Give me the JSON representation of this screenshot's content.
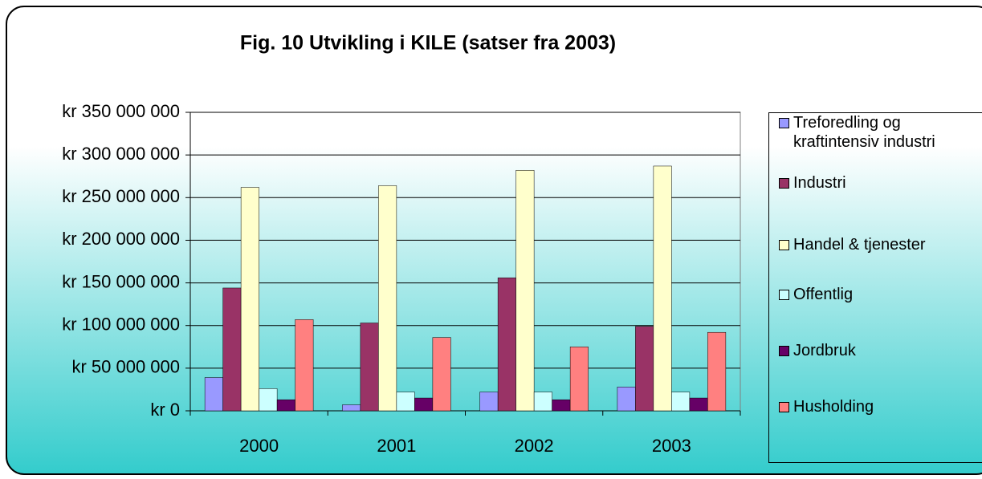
{
  "chart_data": {
    "type": "bar",
    "title": "Fig. 10  Utvikling i KILE (satser fra 2003)",
    "categories": [
      "2000",
      "2001",
      "2002",
      "2003"
    ],
    "series": [
      {
        "name": "Treforedling og kraftintensiv industri",
        "color": "#9999ff",
        "values": [
          39000000,
          7000000,
          22000000,
          28000000
        ]
      },
      {
        "name": "Industri",
        "color": "#993366",
        "values": [
          144000000,
          103000000,
          156000000,
          99000000
        ]
      },
      {
        "name": "Handel & tjenester",
        "color": "#ffffcc",
        "values": [
          262000000,
          264000000,
          282000000,
          287000000
        ]
      },
      {
        "name": "Offentlig",
        "color": "#ccffff",
        "values": [
          26000000,
          22000000,
          22000000,
          22000000
        ]
      },
      {
        "name": "Jordbruk",
        "color": "#660066",
        "values": [
          13000000,
          15000000,
          13000000,
          15000000
        ]
      },
      {
        "name": "Husholding",
        "color": "#ff8080",
        "values": [
          107000000,
          86000000,
          75000000,
          92000000
        ]
      }
    ],
    "ylim": [
      0,
      350000000
    ],
    "yticks": [
      {
        "value": 0,
        "label": "kr 0"
      },
      {
        "value": 50000000,
        "label": "kr 50 000 000"
      },
      {
        "value": 100000000,
        "label": "kr 100 000 000"
      },
      {
        "value": 150000000,
        "label": "kr 150 000 000"
      },
      {
        "value": 200000000,
        "label": "kr 200 000 000"
      },
      {
        "value": 250000000,
        "label": "kr 250 000 000"
      },
      {
        "value": 300000000,
        "label": "kr 300 000 000"
      },
      {
        "value": 350000000,
        "label": "kr 350 000 000"
      }
    ],
    "grid": true,
    "legend": "right"
  }
}
